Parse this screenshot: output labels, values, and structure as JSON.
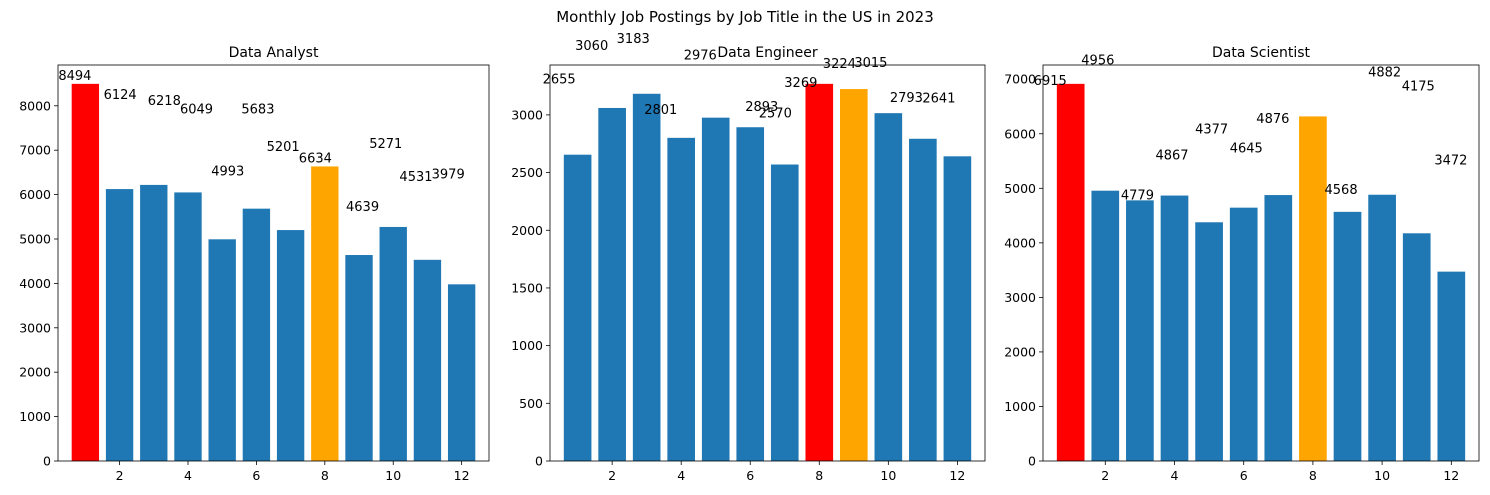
{
  "title": "Monthly Job Postings by Job Title in the US in 2023",
  "chart_data": [
    {
      "type": "bar",
      "title": "Data Analyst",
      "x": [
        1,
        2,
        3,
        4,
        5,
        6,
        7,
        8,
        9,
        10,
        11,
        12
      ],
      "values": [
        8494,
        6124,
        6218,
        6049,
        4993,
        5683,
        5201,
        6634,
        4639,
        5271,
        4531,
        3979
      ],
      "bar_colors": [
        "#ff0000",
        "#1f77b4",
        "#1f77b4",
        "#1f77b4",
        "#1f77b4",
        "#1f77b4",
        "#1f77b4",
        "#ffa500",
        "#1f77b4",
        "#1f77b4",
        "#1f77b4",
        "#1f77b4"
      ],
      "xticks": [
        2,
        4,
        6,
        8,
        10,
        12
      ],
      "yticks": [
        0,
        1000,
        2000,
        3000,
        4000,
        5000,
        6000,
        7000,
        8000
      ],
      "xlim": [
        0.2,
        12.8
      ],
      "ylim": [
        0,
        8918.7
      ],
      "grid": false
    },
    {
      "type": "bar",
      "title": "Data Engineer",
      "x": [
        1,
        2,
        3,
        4,
        5,
        6,
        7,
        8,
        9,
        10,
        11,
        12
      ],
      "values": [
        2655,
        3060,
        3183,
        2801,
        2976,
        2893,
        2570,
        3269,
        3224,
        3015,
        2793,
        2641
      ],
      "bar_colors": [
        "#1f77b4",
        "#1f77b4",
        "#1f77b4",
        "#1f77b4",
        "#1f77b4",
        "#1f77b4",
        "#1f77b4",
        "#ff0000",
        "#ffa500",
        "#1f77b4",
        "#1f77b4",
        "#1f77b4"
      ],
      "xticks": [
        2,
        4,
        6,
        8,
        10,
        12
      ],
      "yticks": [
        0,
        500,
        1000,
        1500,
        2000,
        2500,
        3000
      ],
      "xlim": [
        0.2,
        12.8
      ],
      "ylim": [
        0,
        3432.45
      ],
      "grid": false
    },
    {
      "type": "bar",
      "title": "Data Scientist",
      "x": [
        1,
        2,
        3,
        4,
        5,
        6,
        7,
        8,
        9,
        10,
        11,
        12
      ],
      "values": [
        6915,
        4956,
        4779,
        4867,
        4377,
        4645,
        4876,
        6318,
        4568,
        4882,
        4175,
        3472
      ],
      "bar_colors": [
        "#ff0000",
        "#1f77b4",
        "#1f77b4",
        "#1f77b4",
        "#1f77b4",
        "#1f77b4",
        "#1f77b4",
        "#ffa500",
        "#1f77b4",
        "#1f77b4",
        "#1f77b4",
        "#1f77b4"
      ],
      "xticks": [
        2,
        4,
        6,
        8,
        10,
        12
      ],
      "yticks": [
        0,
        1000,
        2000,
        3000,
        4000,
        5000,
        6000,
        7000
      ],
      "xlim": [
        0.2,
        12.8
      ],
      "ylim": [
        0,
        7260.75
      ],
      "grid": false
    }
  ]
}
